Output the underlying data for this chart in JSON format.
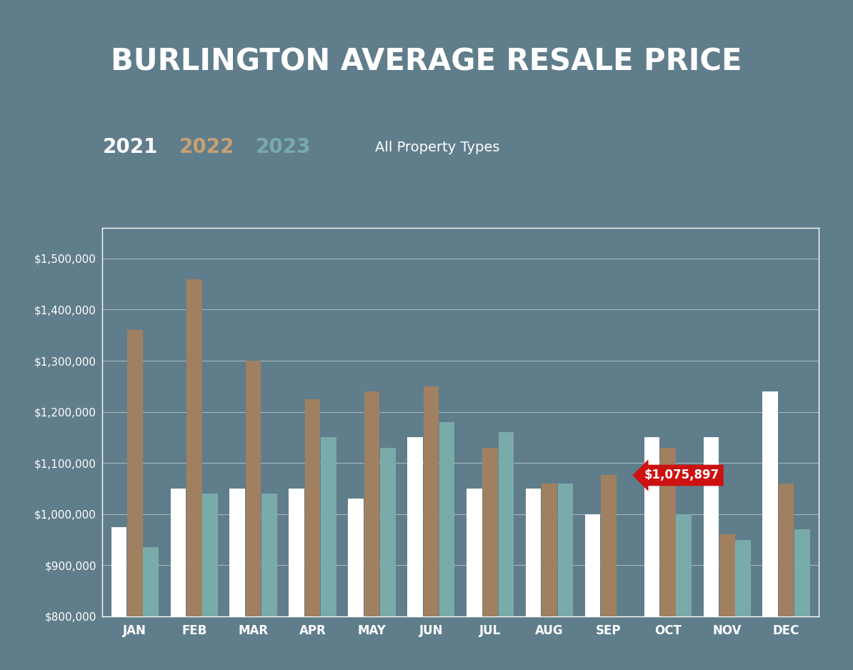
{
  "title": "BURLINGTON AVERAGE RESALE PRICE",
  "subtitle": "All Property Types",
  "months": [
    "JAN",
    "FEB",
    "MAR",
    "APR",
    "MAY",
    "JUN",
    "JUL",
    "AUG",
    "SEP",
    "OCT",
    "NOV",
    "DEC"
  ],
  "values_2021": [
    975000,
    1050000,
    1050000,
    1050000,
    1030000,
    1150000,
    1050000,
    1050000,
    1000000,
    1150000,
    1150000,
    1240000
  ],
  "values_2022": [
    1360000,
    1460000,
    1300000,
    1225000,
    1240000,
    1250000,
    1130000,
    1060000,
    1075897,
    1130000,
    960000,
    1060000
  ],
  "values_2023": [
    935000,
    1040000,
    1040000,
    1150000,
    1130000,
    1180000,
    1160000,
    1060000,
    0,
    1000000,
    950000,
    970000
  ],
  "annotation_value": "$1,075,897",
  "annotation_month_idx": 8,
  "ylim_min": 800000,
  "ylim_max": 1560000,
  "ytick_step": 100000,
  "bar_color_2021": "#ffffff",
  "bar_color_2022": "#a08060",
  "bar_color_2023": "#7aabab",
  "background_color": "#607d8b",
  "title_color": "#ffffff",
  "tick_color": "#ffffff",
  "grid_color": "#ffffff",
  "legend_2021_color": "#ffffff",
  "legend_2022_color": "#c8a070",
  "legend_2023_color": "#7aabab",
  "annotation_color": "#cc1111"
}
